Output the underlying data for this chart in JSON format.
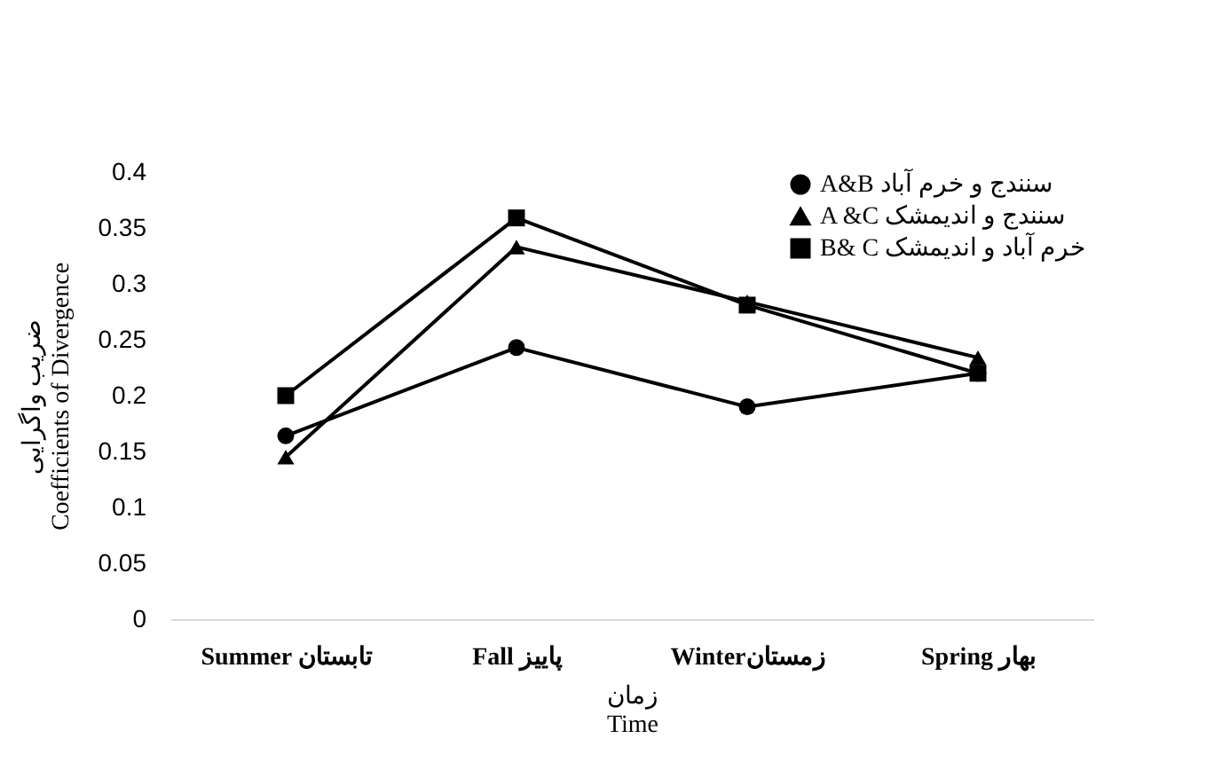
{
  "chart_data": {
    "type": "line",
    "categories": [
      "Summer  تابستان",
      "Fall پاییز",
      "Winterزمستان",
      "Spring بهار"
    ],
    "series": [
      {
        "name": "A&B  سنندج و خرم آباد",
        "color": "#000000",
        "marker": "circle",
        "values": [
          0.164,
          0.243,
          0.19,
          0.22
        ]
      },
      {
        "name": "A &C  سنندج و اندیمشک",
        "color": "#000000",
        "marker": "triangle",
        "values": [
          0.145,
          0.333,
          0.284,
          0.234
        ]
      },
      {
        "name": "B& C  خرم آباد و اندیمشک",
        "color": "#000000",
        "marker": "square",
        "values": [
          0.2,
          0.359,
          0.281,
          0.22
        ]
      }
    ],
    "xlabel": "زمان\nTime",
    "ylabel": "ضریب واگرایی\nCoefficients of Divergence",
    "ylim": [
      0,
      0.4
    ],
    "yticks": [
      0,
      0.05,
      0.1,
      0.15,
      0.2,
      0.25,
      0.3,
      0.35,
      0.4
    ],
    "grid": false,
    "legend": "top right",
    "line_style": "solid"
  }
}
